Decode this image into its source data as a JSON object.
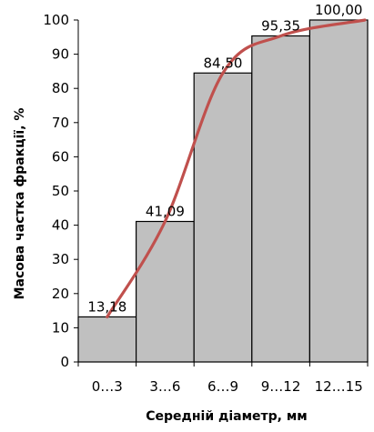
{
  "chart_data": {
    "type": "bar",
    "categories": [
      "0…3",
      "3…6",
      "6…9",
      "9…12",
      "12…15"
    ],
    "values": [
      13.18,
      41.09,
      84.5,
      95.35,
      100.0
    ],
    "data_labels": [
      "13,18",
      "41,09",
      "84,50",
      "95,35",
      "100,00"
    ],
    "xlabel": "Середній діаметр, мм",
    "ylabel": "Масова частка фракції, %",
    "ylim": [
      0,
      100
    ],
    "yticks": [
      0,
      10,
      20,
      30,
      40,
      50,
      60,
      70,
      80,
      90,
      100
    ],
    "bar_color": "#c0c0c0",
    "bar_edge_color": "#000000",
    "curve": {
      "type": "smoothed-line",
      "color": "#c0504d",
      "values": [
        13.18,
        41.09,
        84.5,
        95.35,
        100.0
      ]
    },
    "grid": false,
    "legend": "none"
  }
}
